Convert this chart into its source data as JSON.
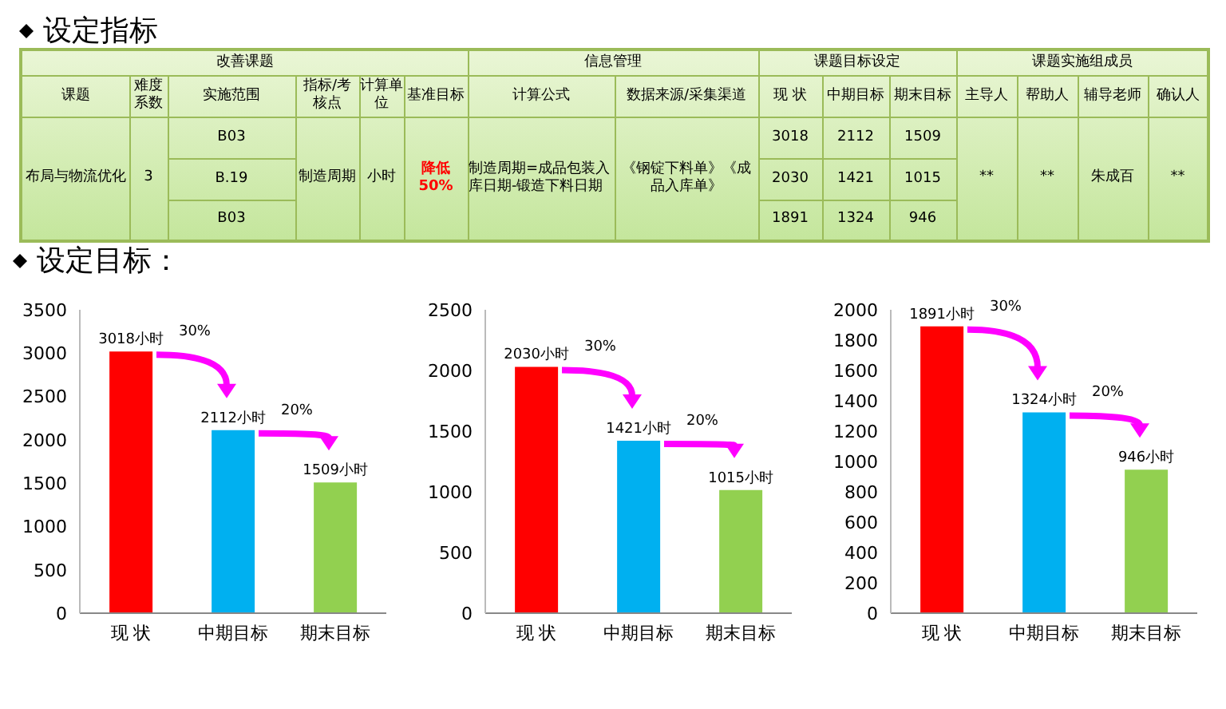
{
  "chart_data": [
    {
      "type": "other",
      "title": "设定指标",
      "annotations": [
        "改善课题",
        "信息管理",
        "课题目标设定",
        "课题实施组成员",
        "课题",
        "难度系数",
        "实施范围",
        "指标/考核点",
        "计算单位",
        "基准目标",
        "计算公式",
        "数据来源/采集渠道",
        "现 状",
        "中期目标",
        "期末目标",
        "主导人",
        "帮助人",
        "辅导老师",
        "确认人",
        "布局与物流优化",
        "3",
        "B03",
        "制造周期",
        "小时",
        "降低50%",
        "制造周期=成品包装入库日期-锻造下料日期",
        "《钢锭下料单》《成品入库单》",
        "3018",
        "2112",
        "1509",
        "**",
        "**",
        "朱成百",
        "**",
        "B.19",
        "2030",
        "1421",
        "1015",
        "B03",
        "1891",
        "1324",
        "946"
      ]
    },
    {
      "type": "bar",
      "title": "设定目标：",
      "categories": [
        "现 状",
        "中期目标",
        "期末目标"
      ],
      "values": [
        3018,
        2112,
        1509
      ],
      "colors": [
        "#ff0000",
        "#00b0f0",
        "#92d050"
      ],
      "value_labels": [
        "3018小时",
        "2112小时",
        "1509小时"
      ],
      "annotations": [
        "30%",
        "20%"
      ],
      "ylim": [
        0,
        3500
      ],
      "yticks": [
        0,
        500,
        1000,
        1500,
        2000,
        2500,
        3000,
        3500
      ]
    },
    {
      "type": "bar",
      "categories": [
        "现 状",
        "中期目标",
        "期末目标"
      ],
      "values": [
        2030,
        1421,
        1015
      ],
      "colors": [
        "#ff0000",
        "#00b0f0",
        "#92d050"
      ],
      "value_labels": [
        "2030小时",
        "1421小时",
        "1015小时"
      ],
      "annotations": [
        "30%",
        "20%"
      ],
      "ylim": [
        0,
        2500
      ],
      "yticks": [
        0,
        500,
        1000,
        1500,
        2000,
        2500
      ]
    },
    {
      "type": "bar",
      "categories": [
        "现 状",
        "中期目标",
        "期末目标"
      ],
      "values": [
        1891,
        1324,
        946
      ],
      "colors": [
        "#ff0000",
        "#00b0f0",
        "#92d050"
      ],
      "value_labels": [
        "1891小时",
        "1324小时",
        "946小时"
      ],
      "annotations": [
        "30%",
        "20%"
      ],
      "ylim": [
        0,
        2000
      ],
      "yticks": [
        0,
        200,
        400,
        600,
        800,
        1000,
        1200,
        1400,
        1600,
        1800,
        2000
      ]
    }
  ]
}
